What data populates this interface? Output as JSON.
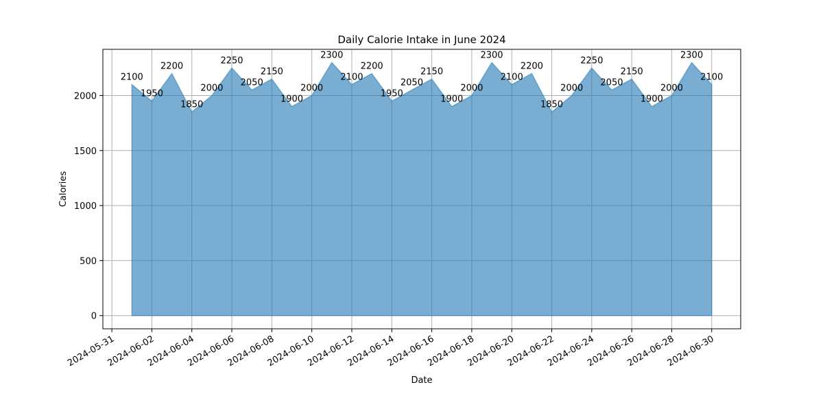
{
  "chart_data": {
    "type": "area",
    "title": "Daily Calorie Intake in June 2024",
    "xlabel": "Date",
    "ylabel": "Calories",
    "x": [
      "2024-06-01",
      "2024-06-02",
      "2024-06-03",
      "2024-06-04",
      "2024-06-05",
      "2024-06-06",
      "2024-06-07",
      "2024-06-08",
      "2024-06-09",
      "2024-06-10",
      "2024-06-11",
      "2024-06-12",
      "2024-06-13",
      "2024-06-14",
      "2024-06-15",
      "2024-06-16",
      "2024-06-17",
      "2024-06-18",
      "2024-06-19",
      "2024-06-20",
      "2024-06-21",
      "2024-06-22",
      "2024-06-23",
      "2024-06-24",
      "2024-06-25",
      "2024-06-26",
      "2024-06-27",
      "2024-06-28",
      "2024-06-29",
      "2024-06-30"
    ],
    "values": [
      2100,
      1950,
      2200,
      1850,
      2000,
      2250,
      2050,
      2150,
      1900,
      2000,
      2300,
      2100,
      2200,
      1950,
      2050,
      2150,
      1900,
      2000,
      2300,
      2100,
      2200,
      1850,
      2000,
      2250,
      2050,
      2150,
      1900,
      2000,
      2300,
      2100
    ],
    "data_labels": [
      "2100",
      "1950",
      "2200",
      "1850",
      "2000",
      "2250",
      "2050",
      "2150",
      "1900",
      "2000",
      "2300",
      "2100",
      "2200",
      "1950",
      "2050",
      "2150",
      "1900",
      "2000",
      "2300",
      "2100",
      "2200",
      "1850",
      "2000",
      "2250",
      "2050",
      "2150",
      "1900",
      "2000",
      "2300",
      "2100"
    ],
    "x_ticks": [
      "2024-05-31",
      "2024-06-02",
      "2024-06-04",
      "2024-06-06",
      "2024-06-08",
      "2024-06-10",
      "2024-06-12",
      "2024-06-14",
      "2024-06-16",
      "2024-06-18",
      "2024-06-20",
      "2024-06-22",
      "2024-06-24",
      "2024-06-26",
      "2024-06-28",
      "2024-06-30"
    ],
    "y_ticks": [
      "0",
      "500",
      "1000",
      "1500",
      "2000"
    ],
    "xlim": [
      "2024-05-31",
      "2024-07-01"
    ],
    "ylim": [
      -120,
      2420
    ],
    "grid": true,
    "fill_color": "#1f77b4",
    "fill_opacity": 0.6
  }
}
